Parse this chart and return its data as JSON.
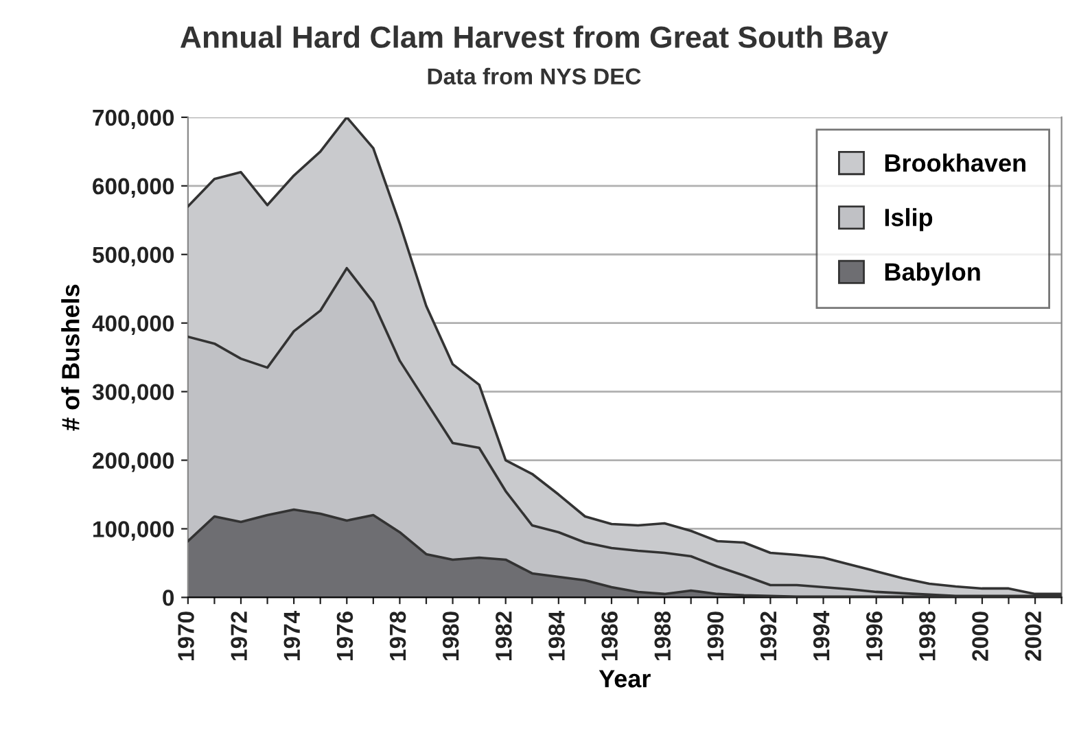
{
  "chart_data": {
    "type": "area",
    "stacked": true,
    "title": "Annual Hard Clam Harvest from Great South Bay",
    "subtitle": "Data from NYS DEC",
    "xlabel": "Year",
    "ylabel": "# of Bushels",
    "categories": [
      "1970",
      null,
      "1972",
      null,
      "1974",
      null,
      "1976",
      null,
      "1978",
      null,
      "1980",
      null,
      "1982",
      null,
      "1984",
      null,
      "1986",
      null,
      "1988",
      null,
      "1990",
      null,
      "1992",
      null,
      "1994",
      null,
      "1996",
      null,
      "1998",
      null,
      "2000",
      null,
      "2002",
      null
    ],
    "series": [
      {
        "name": "Babylon",
        "color": "#6e6e72",
        "values": [
          82000,
          118000,
          110000,
          120000,
          128000,
          122000,
          112000,
          120000,
          95000,
          63000,
          55000,
          58000,
          55000,
          35000,
          30000,
          25000,
          15000,
          8000,
          5000,
          10000,
          5000,
          3000,
          2000,
          1000,
          1000,
          1000,
          1000,
          1000,
          1000,
          1000,
          1000,
          1000,
          1000,
          1000
        ]
      },
      {
        "name": "Islip",
        "color": "#c0c1c5",
        "values": [
          298000,
          252000,
          238000,
          215000,
          260000,
          296000,
          368000,
          310000,
          250000,
          222000,
          170000,
          160000,
          100000,
          70000,
          65000,
          55000,
          57000,
          60000,
          60000,
          50000,
          40000,
          29000,
          16000,
          17000,
          14000,
          11000,
          7000,
          5000,
          3000,
          1000,
          1000,
          1000,
          1000,
          1000
        ]
      },
      {
        "name": "Brookhaven",
        "color": "#c9cacd",
        "values": [
          190000,
          240000,
          272000,
          237000,
          227000,
          232000,
          220000,
          225000,
          200000,
          140000,
          115000,
          92000,
          45000,
          75000,
          55000,
          38000,
          35000,
          37000,
          43000,
          37000,
          37000,
          48000,
          47000,
          44000,
          43000,
          36000,
          30000,
          22000,
          16000,
          14000,
          11000,
          11000,
          3000,
          3000
        ]
      }
    ],
    "ylim": [
      0,
      700000
    ],
    "yticks": [
      {
        "value": 0,
        "label": "0"
      },
      {
        "value": 100000,
        "label": "100,000"
      },
      {
        "value": 200000,
        "label": "200,000"
      },
      {
        "value": 300000,
        "label": "300,000"
      },
      {
        "value": 400000,
        "label": "400,000"
      },
      {
        "value": 500000,
        "label": "500,000"
      },
      {
        "value": 600000,
        "label": "600,000"
      },
      {
        "value": 700000,
        "label": "700,000"
      }
    ],
    "grid": "y",
    "legend": "top right"
  }
}
